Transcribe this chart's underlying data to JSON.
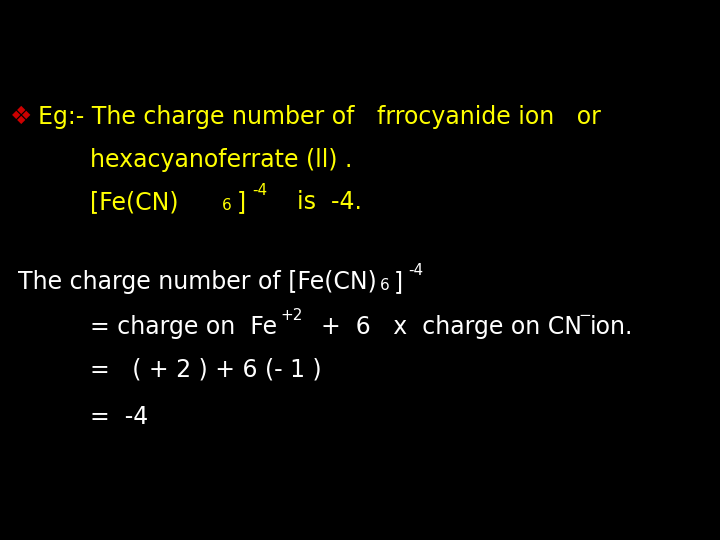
{
  "background_color": "#000000",
  "bullet_color": "#cc0000",
  "yellow_color": "#ffff00",
  "white_color": "#ffffff",
  "fig_width": 7.2,
  "fig_height": 5.4,
  "dpi": 100
}
